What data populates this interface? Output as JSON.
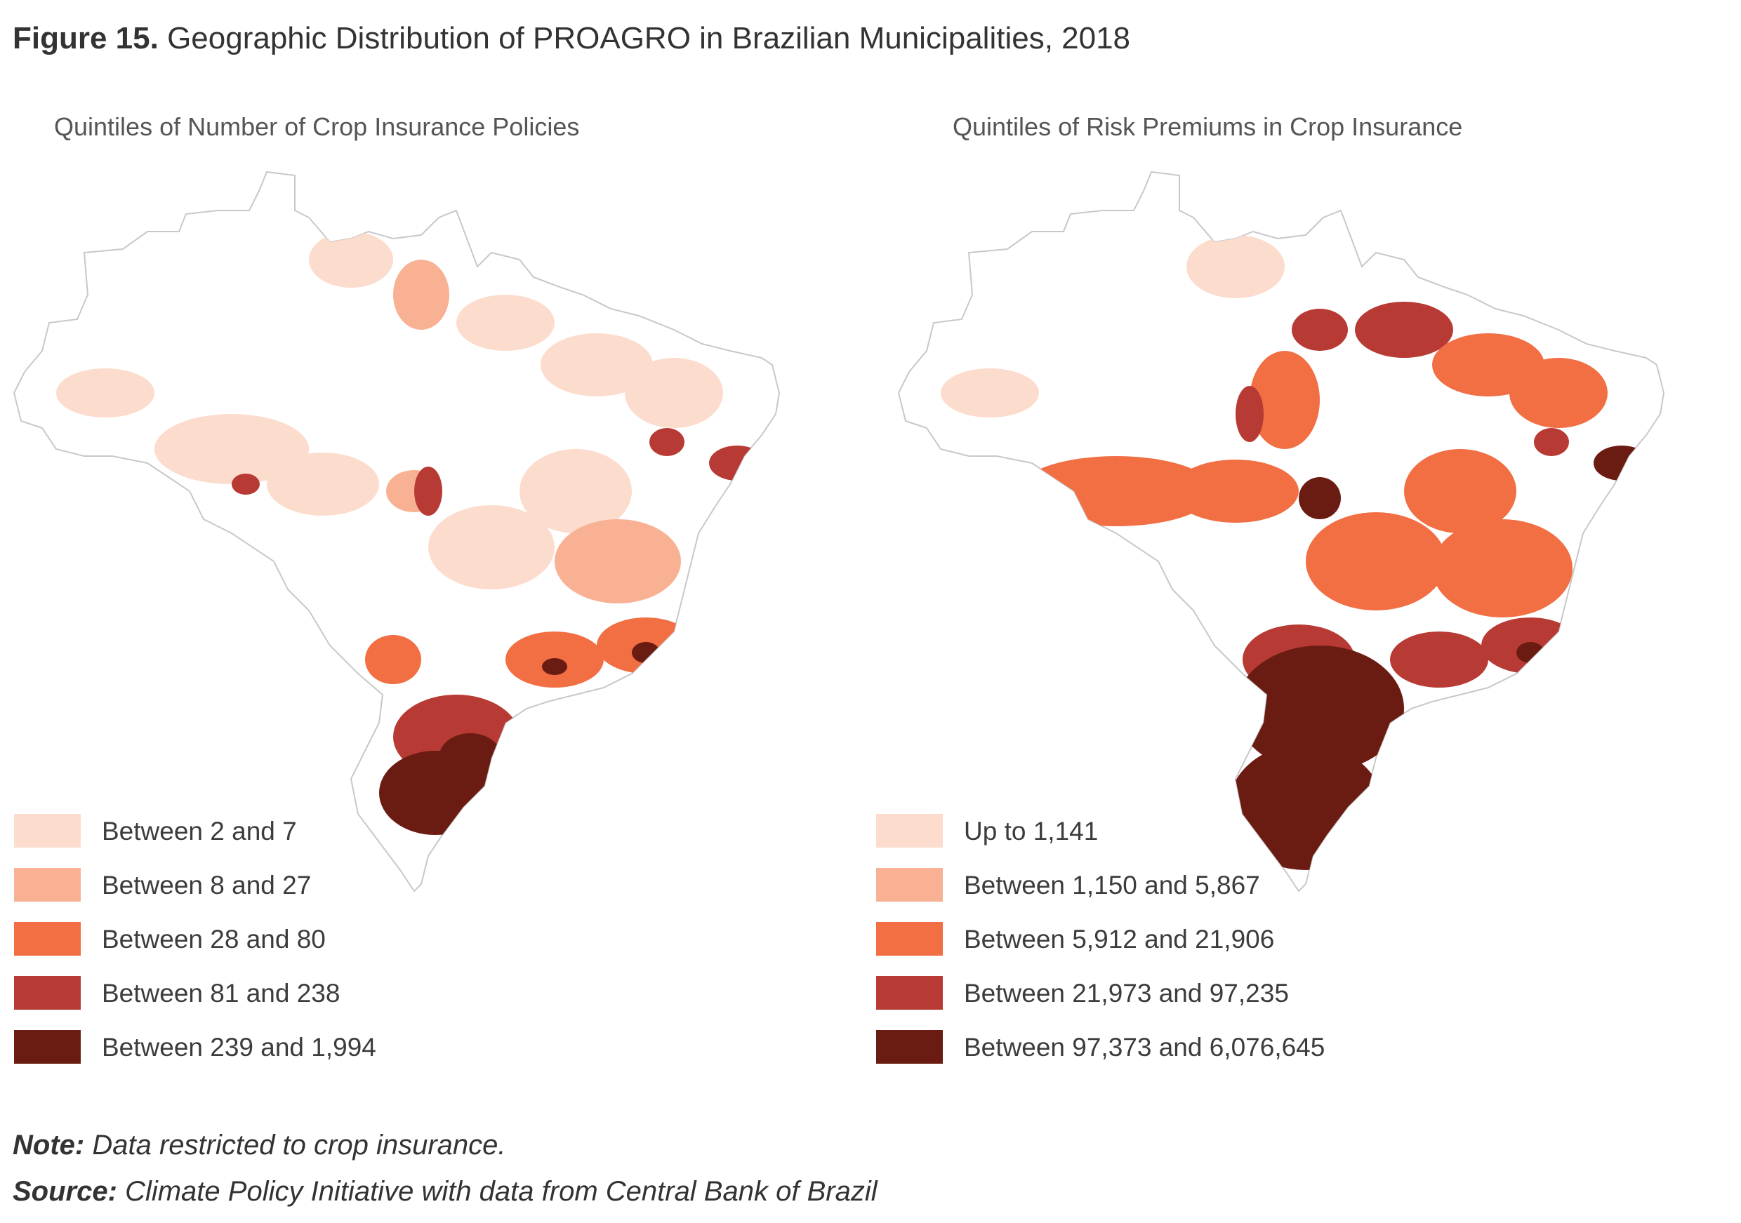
{
  "figure": {
    "label": "Figure 15.",
    "title": "Geographic Distribution of PROAGRO in Brazilian Municipalities, 2018"
  },
  "colors": [
    "#fcdccd",
    "#f8b193",
    "#f26e43",
    "#b83a34",
    "#6b1c12"
  ],
  "panels": [
    {
      "subtitle": "Quintiles of Number of Crop Insurance Policies",
      "legend": [
        {
          "label": "Between 2 and 7"
        },
        {
          "label": "Between 8 and 27"
        },
        {
          "label": "Between 28 and 80"
        },
        {
          "label": "Between 81 and 238"
        },
        {
          "label": "Between 239 and 1,994"
        }
      ]
    },
    {
      "subtitle": "Quintiles of Risk Premiums in Crop Insurance",
      "legend": [
        {
          "label": "Up to 1,141"
        },
        {
          "label": "Between 1,150 and 5,867"
        },
        {
          "label": "Between 5,912 and 21,906"
        },
        {
          "label": "Between 21,973 and 97,235"
        },
        {
          "label": "Between 97,373 and 6,076,645"
        }
      ]
    }
  ],
  "note": {
    "label": "Note:",
    "text": "Data restricted to crop insurance."
  },
  "source": {
    "label": "Source:",
    "text": "Climate Policy Initiative with data from Central Bank of Brazil"
  }
}
